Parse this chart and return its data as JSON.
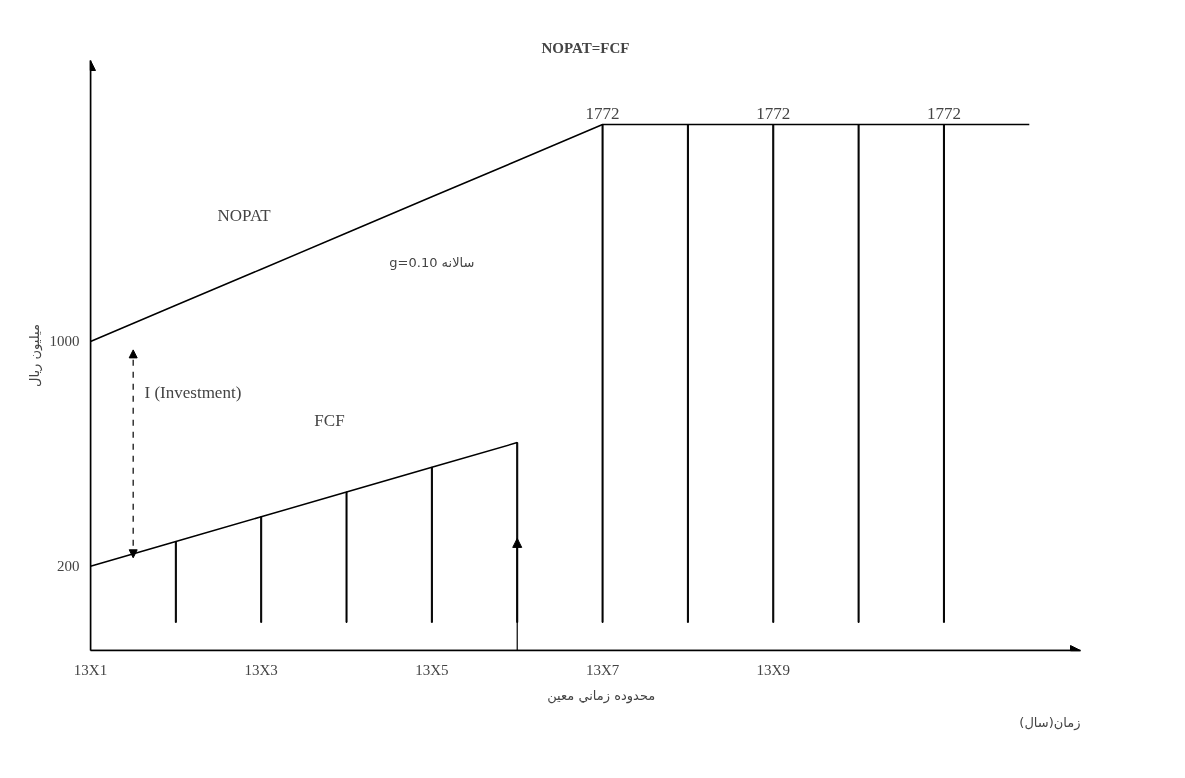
{
  "chart_data": {
    "type": "line",
    "title": "NOPAT=FCF",
    "xlabel": "زمان(سال)",
    "ylabel": "میلیون ریال",
    "categories": [
      "13X1",
      null,
      "13X3",
      null,
      "13X5",
      null,
      "13X7",
      null,
      "13X9",
      null,
      null,
      null
    ],
    "ylim": [
      -100,
      2000
    ],
    "yticks": [
      200,
      1000
    ],
    "grid": false,
    "marker": "none",
    "line_style": "solid",
    "series": [
      {
        "color": "#000000",
        "values": [
          1000,
          1129,
          1257,
          1386,
          1515,
          1643,
          1772,
          1772,
          1772,
          1772,
          1772,
          1772
        ]
      },
      {
        "color": "#000000",
        "values": [
          200,
          288,
          376,
          464,
          552,
          640,
          null,
          null,
          null,
          null,
          null,
          null
        ]
      },
      {
        "type": "bar",
        "color": "#000000",
        "values": [
          null,
          288,
          376,
          464,
          552,
          640,
          null,
          null,
          null,
          null,
          null,
          null
        ]
      },
      {
        "type": "bar",
        "color": "#000000",
        "values": [
          null,
          null,
          null,
          null,
          null,
          null,
          1772,
          1772,
          1772,
          1772,
          1772,
          null
        ],
        "value_labels": [
          null,
          null,
          null,
          null,
          null,
          null,
          "1772",
          null,
          "1772",
          null,
          "1772",
          null
        ]
      }
    ],
    "annotations": [
      "NOPAT",
      "g=0.10 سالانه",
      "I (Investment)",
      "FCF",
      "محدوده زماني معين"
    ]
  }
}
